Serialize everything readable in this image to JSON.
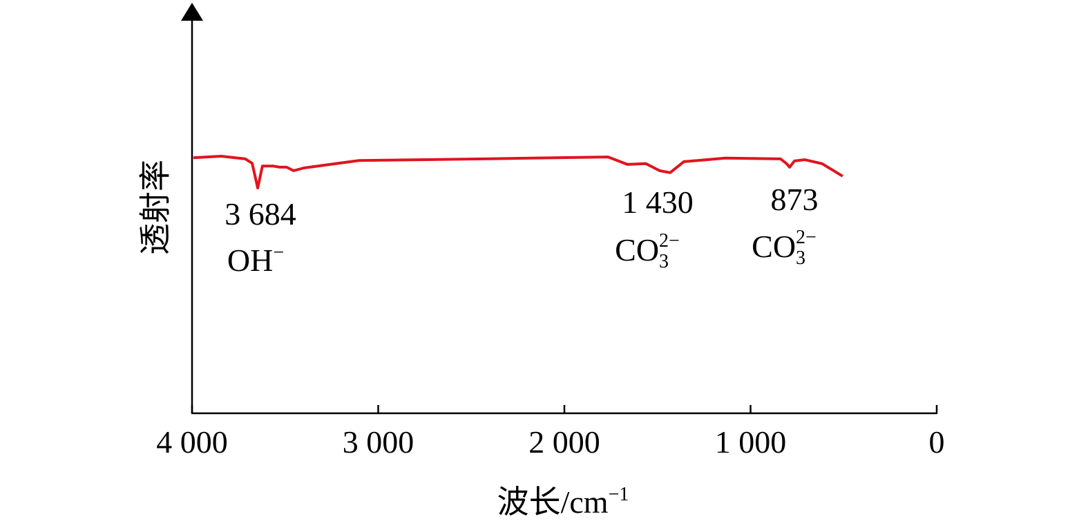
{
  "chart_data": {
    "type": "line",
    "x_label": {
      "text": "波长/cm",
      "sup": "−1"
    },
    "y_label": "透射率",
    "xlim": [
      4000,
      0
    ],
    "xticks": [
      {
        "value": 4000,
        "label": "4 000"
      },
      {
        "value": 3000,
        "label": "3 000"
      },
      {
        "value": 2000,
        "label": "2 000"
      },
      {
        "value": 1000,
        "label": "1 000"
      },
      0
    ],
    "ylim": [
      0,
      100
    ],
    "series": [
      {
        "color": "#e0141e",
        "x": [
          3993,
          3844,
          3714,
          3677,
          3647,
          3622,
          3566,
          3529,
          3492,
          3455,
          3399,
          3102,
          2434,
          1766,
          1662,
          1562,
          1488,
          1432,
          1358,
          1135,
          839,
          809,
          790,
          764,
          709,
          616,
          505
        ],
        "values": [
          65.1,
          65.5,
          64.8,
          63.7,
          57.4,
          63.0,
          63.0,
          62.7,
          62.7,
          61.8,
          62.5,
          64.4,
          64.8,
          65.3,
          63.4,
          63.6,
          61.8,
          61.3,
          64.1,
          65.0,
          64.8,
          63.7,
          62.7,
          64.3,
          64.6,
          63.6,
          60.4
        ]
      }
    ],
    "annotations": [
      {
        "label": "3 684",
        "formula": "OH",
        "sup": "−"
      },
      {
        "label": "1 430",
        "formula": "CO",
        "sub": "3",
        "sup": "2−"
      },
      {
        "label": "873",
        "formula": "CO",
        "sub": "3",
        "sup": "2−"
      }
    ]
  }
}
